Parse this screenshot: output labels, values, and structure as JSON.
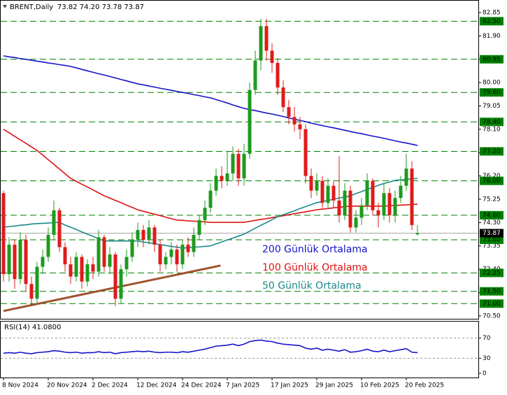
{
  "chart_data": [
    {
      "type": "candlestick",
      "title": "BRENT,Daily",
      "subtitle": "73.82 74.20 73.78 73.87",
      "categories": [
        "8 Nov 2024",
        null,
        null,
        null,
        null,
        null,
        null,
        null,
        "20 Nov 2024",
        null,
        null,
        null,
        null,
        null,
        null,
        null,
        "2 Dec 2024",
        null,
        null,
        null,
        null,
        null,
        null,
        null,
        "12 Dec 2024",
        null,
        null,
        null,
        null,
        null,
        null,
        null,
        "24 Dec 2024",
        null,
        null,
        null,
        null,
        null,
        null,
        null,
        "7 Jan 2025",
        null,
        null,
        null,
        null,
        null,
        null,
        null,
        "17 Jan 2025",
        null,
        null,
        null,
        null,
        null,
        null,
        null,
        "29 Jan 2025",
        null,
        null,
        null,
        null,
        null,
        null,
        null,
        "10 Feb 2025",
        null,
        null,
        null,
        null,
        null,
        null,
        null,
        "20 Feb 2025",
        null,
        null
      ],
      "open": [
        75.5,
        72.2,
        73.4,
        72.0,
        73.6,
        71.8,
        71.2,
        72.5,
        72.9,
        73.8,
        74.8,
        73.3,
        72.6,
        72.1,
        72.9,
        71.9,
        72.6,
        72.3,
        73.7,
        72.5,
        73.0,
        71.2,
        72.4,
        72.9,
        73.6,
        74.0,
        73.6,
        74.1,
        73.4,
        72.6,
        72.9,
        73.2,
        72.6,
        73.4,
        73.1,
        73.8,
        74.4,
        74.9,
        75.6,
        76.2,
        76.0,
        76.3,
        77.1,
        76.1,
        77.1,
        79.7,
        80.9,
        82.3,
        81.3,
        80.8,
        79.8,
        79.0,
        78.6,
        78.3,
        78.1,
        76.2,
        75.6,
        76.0,
        75.1,
        75.8,
        75.2,
        74.6,
        75.6,
        74.1,
        74.5,
        75.0,
        76.0,
        74.8,
        74.6,
        75.5,
        74.6,
        75.3,
        75.8,
        76.5,
        73.82
      ],
      "high": [
        75.6,
        73.7,
        73.6,
        73.9,
        73.8,
        72.1,
        72.7,
        73.2,
        74.1,
        75.2,
        74.9,
        73.5,
        72.9,
        73.1,
        73.0,
        72.8,
        72.9,
        74.0,
        73.8,
        73.3,
        73.1,
        72.6,
        73.2,
        73.9,
        74.3,
        74.2,
        74.4,
        74.2,
        73.6,
        73.1,
        73.5,
        73.4,
        73.6,
        73.7,
        74.1,
        74.6,
        75.2,
        75.9,
        76.5,
        76.6,
        77.2,
        77.4,
        77.3,
        77.5,
        80.0,
        81.3,
        82.6,
        82.6,
        81.6,
        81.0,
        80.1,
        79.3,
        79.0,
        78.6,
        78.3,
        76.5,
        76.3,
        76.2,
        76.1,
        76.0,
        77.0,
        75.9,
        75.8,
        74.8,
        75.3,
        76.3,
        76.1,
        75.1,
        75.9,
        75.7,
        75.6,
        76.2,
        77.1,
        76.8,
        74.2
      ],
      "low": [
        71.9,
        71.9,
        71.6,
        71.8,
        71.5,
        70.9,
        71.0,
        72.2,
        72.7,
        73.6,
        73.1,
        72.3,
        71.8,
        71.9,
        71.6,
        71.7,
        72.0,
        72.1,
        72.3,
        72.2,
        70.9,
        71.0,
        72.1,
        72.7,
        73.3,
        73.3,
        73.4,
        73.1,
        72.3,
        72.4,
        72.6,
        72.3,
        72.4,
        72.9,
        72.9,
        73.6,
        74.2,
        74.7,
        75.4,
        75.7,
        75.8,
        76.0,
        75.8,
        75.8,
        76.9,
        79.5,
        80.5,
        80.9,
        80.4,
        79.5,
        78.8,
        78.3,
        78.0,
        77.7,
        75.9,
        75.3,
        75.4,
        74.9,
        74.9,
        74.9,
        74.3,
        74.4,
        73.9,
        73.9,
        74.2,
        74.8,
        74.6,
        74.1,
        74.4,
        74.3,
        74.3,
        75.1,
        75.6,
        74.0,
        73.78
      ],
      "close": [
        72.2,
        73.4,
        72.0,
        73.6,
        71.8,
        71.2,
        72.5,
        72.9,
        73.8,
        74.8,
        73.3,
        72.6,
        72.1,
        72.9,
        71.9,
        72.6,
        72.3,
        73.7,
        72.5,
        73.0,
        71.2,
        72.4,
        72.9,
        73.6,
        74.0,
        73.6,
        74.1,
        73.4,
        72.6,
        72.9,
        73.2,
        72.6,
        73.4,
        73.1,
        73.8,
        74.4,
        74.9,
        75.6,
        76.2,
        76.0,
        76.3,
        77.1,
        76.1,
        77.1,
        79.7,
        80.9,
        82.3,
        81.3,
        80.8,
        79.8,
        79.0,
        78.6,
        78.3,
        78.1,
        76.2,
        75.6,
        76.0,
        75.1,
        75.8,
        75.2,
        74.6,
        75.6,
        74.1,
        74.5,
        75.0,
        76.0,
        74.8,
        74.6,
        75.5,
        74.6,
        75.3,
        75.8,
        76.5,
        74.2,
        73.87
      ],
      "up_color": "#1e9a1e",
      "down_color": "#e01b1b",
      "series": [
        {
          "name": "200 Günlük Ortalama",
          "color": "#1414c8",
          "values": [
            81.09,
            81.05,
            81.02,
            80.98,
            80.95,
            80.91,
            80.87,
            80.84,
            80.8,
            80.77,
            80.73,
            80.7,
            80.66,
            80.6,
            80.54,
            80.48,
            80.42,
            80.36,
            80.31,
            80.25,
            80.19,
            80.13,
            80.07,
            80.01,
            79.95,
            79.91,
            79.86,
            79.82,
            79.77,
            79.73,
            79.69,
            79.64,
            79.6,
            79.56,
            79.51,
            79.47,
            79.42,
            79.38,
            79.31,
            79.24,
            79.17,
            79.09,
            79.02,
            78.95,
            78.9,
            78.86,
            78.81,
            78.76,
            78.72,
            78.67,
            78.62,
            78.56,
            78.51,
            78.46,
            78.41,
            78.35,
            78.3,
            78.25,
            78.2,
            78.16,
            78.11,
            78.06,
            78.01,
            77.96,
            77.92,
            77.87,
            77.82,
            77.78,
            77.73,
            77.68,
            77.63,
            77.58,
            77.54,
            77.49,
            77.44
          ]
        },
        {
          "name": "100 Günlük Ortalama",
          "color": "#e01010",
          "values": [
            78.1,
            77.96,
            77.81,
            77.67,
            77.53,
            77.38,
            77.24,
            77.05,
            76.86,
            76.67,
            76.48,
            76.29,
            76.1,
            75.98,
            75.86,
            75.75,
            75.63,
            75.51,
            75.39,
            75.3,
            75.2,
            75.11,
            75.01,
            74.92,
            74.82,
            74.76,
            74.7,
            74.64,
            74.58,
            74.52,
            74.46,
            74.4,
            74.39,
            74.37,
            74.36,
            74.34,
            74.33,
            74.31,
            74.31,
            74.31,
            74.31,
            74.31,
            74.31,
            74.31,
            74.35,
            74.39,
            74.43,
            74.46,
            74.5,
            74.54,
            74.58,
            74.62,
            74.66,
            74.7,
            74.74,
            74.78,
            74.82,
            74.85,
            74.87,
            74.9,
            74.92,
            74.95,
            74.97,
            74.97,
            74.97,
            74.97,
            74.97,
            74.97,
            74.97,
            74.98,
            75.0,
            75.01,
            75.02,
            75.04,
            75.05
          ]
        },
        {
          "name": "50 Günlük Ortalama",
          "color": "#1a8a8a",
          "values": [
            74.11,
            74.14,
            74.16,
            74.19,
            74.21,
            74.24,
            74.26,
            74.27,
            74.28,
            74.3,
            74.31,
            74.2,
            74.11,
            74.02,
            73.92,
            73.83,
            73.74,
            73.64,
            73.55,
            73.55,
            73.55,
            73.55,
            73.55,
            73.55,
            73.55,
            73.51,
            73.48,
            73.44,
            73.4,
            73.37,
            73.33,
            73.3,
            73.26,
            73.28,
            73.3,
            73.31,
            73.33,
            73.35,
            73.43,
            73.51,
            73.59,
            73.67,
            73.75,
            73.83,
            73.95,
            74.07,
            74.19,
            74.3,
            74.42,
            74.54,
            74.62,
            74.7,
            74.78,
            74.87,
            74.95,
            75.03,
            75.11,
            75.16,
            75.2,
            75.25,
            75.3,
            75.34,
            75.39,
            75.48,
            75.56,
            75.65,
            75.73,
            75.82,
            75.89,
            75.95,
            76.02,
            76.04,
            76.06,
            76.08,
            76.1
          ]
        }
      ],
      "trendline": {
        "color": "#a0522d",
        "x": [
          0,
          38.8
        ],
        "values": [
          70.7,
          72.55
        ]
      },
      "ylim": [
        70.41,
        83.25
      ],
      "yticks": [
        82.85,
        {
          "value": 81.9,
          "label": "81.90"
        },
        80.95,
        {
          "value": 80,
          "label": "80.00"
        },
        79.05,
        {
          "value": 78.1,
          "label": "78.10"
        },
        77.15,
        {
          "value": 76.2,
          "label": "76.20"
        },
        75.25,
        {
          "value": 74.3,
          "label": "74.30"
        },
        73.35,
        {
          "value": 72.4,
          "label": "72.40"
        },
        71.45,
        {
          "value": 70.5,
          "label": "70.50"
        }
      ],
      "levels": [
        {
          "value": 82.5,
          "label": "82.50"
        },
        80.95,
        {
          "value": 79.6,
          "label": "79.60"
        },
        {
          "value": 78.4,
          "label": "78.40"
        },
        {
          "value": 77.2,
          "label": "77.20"
        },
        {
          "value": 76,
          "label": "76.00"
        },
        {
          "value": 74.6,
          "label": "74.60"
        },
        {
          "value": 73.6,
          "label": "73.60"
        },
        72.25,
        {
          "value": 71.5,
          "label": "71.50"
        },
        {
          "value": 71,
          "label": "71.00"
        }
      ],
      "level_color": "#008000",
      "current_price": 73.87
    },
    {
      "type": "line",
      "title": "RSI(14) 41.0800",
      "color": "#1414c8",
      "values": [
        40,
        41,
        40,
        42,
        40,
        39,
        41,
        42,
        43,
        45,
        44,
        42,
        41,
        42,
        40,
        41,
        41,
        43,
        41,
        42,
        39,
        41,
        42,
        43,
        44,
        43,
        44,
        42,
        41,
        42,
        42,
        41,
        43,
        42,
        44,
        46,
        48,
        51,
        54,
        55,
        56,
        58,
        55,
        58,
        63,
        65,
        66,
        64,
        63,
        60,
        58,
        57,
        56,
        55,
        50,
        48,
        50,
        46,
        48,
        46,
        44,
        47,
        42,
        43,
        45,
        48,
        44,
        43,
        46,
        43,
        45,
        47,
        49,
        42,
        41.08
      ],
      "ylim": [
        0,
        100
      ],
      "yticks": [
        70,
        30,
        0
      ],
      "levels": [
        70,
        30
      ]
    }
  ]
}
